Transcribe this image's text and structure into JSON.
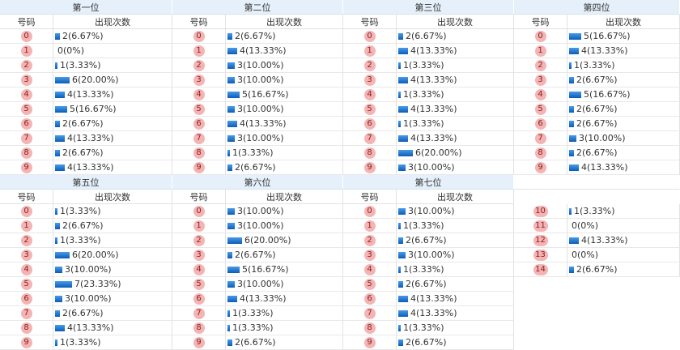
{
  "sections": [
    {
      "title": "第一位",
      "number_header": "号码",
      "count_header": "出现次数",
      "rows": [
        {
          "n": "0",
          "count": 2,
          "label": "2(6.67%)"
        },
        {
          "n": "1",
          "count": 0,
          "label": "0(0%)"
        },
        {
          "n": "2",
          "count": 1,
          "label": "1(3.33%)"
        },
        {
          "n": "3",
          "count": 6,
          "label": "6(20.00%)"
        },
        {
          "n": "4",
          "count": 4,
          "label": "4(13.33%)"
        },
        {
          "n": "5",
          "count": 5,
          "label": "5(16.67%)"
        },
        {
          "n": "6",
          "count": 2,
          "label": "2(6.67%)"
        },
        {
          "n": "7",
          "count": 4,
          "label": "4(13.33%)"
        },
        {
          "n": "8",
          "count": 2,
          "label": "2(6.67%)"
        },
        {
          "n": "9",
          "count": 4,
          "label": "4(13.33%)"
        }
      ]
    },
    {
      "title": "第二位",
      "number_header": "号码",
      "count_header": "出现次数",
      "rows": [
        {
          "n": "0",
          "count": 2,
          "label": "2(6.67%)"
        },
        {
          "n": "1",
          "count": 4,
          "label": "4(13.33%)"
        },
        {
          "n": "2",
          "count": 3,
          "label": "3(10.00%)"
        },
        {
          "n": "3",
          "count": 3,
          "label": "3(10.00%)"
        },
        {
          "n": "4",
          "count": 5,
          "label": "5(16.67%)"
        },
        {
          "n": "5",
          "count": 3,
          "label": "3(10.00%)"
        },
        {
          "n": "6",
          "count": 4,
          "label": "4(13.33%)"
        },
        {
          "n": "7",
          "count": 3,
          "label": "3(10.00%)"
        },
        {
          "n": "8",
          "count": 1,
          "label": "1(3.33%)"
        },
        {
          "n": "9",
          "count": 2,
          "label": "2(6.67%)"
        }
      ]
    },
    {
      "title": "第三位",
      "number_header": "号码",
      "count_header": "出现次数",
      "rows": [
        {
          "n": "0",
          "count": 2,
          "label": "2(6.67%)"
        },
        {
          "n": "1",
          "count": 4,
          "label": "4(13.33%)"
        },
        {
          "n": "2",
          "count": 1,
          "label": "1(3.33%)"
        },
        {
          "n": "3",
          "count": 4,
          "label": "4(13.33%)"
        },
        {
          "n": "4",
          "count": 1,
          "label": "1(3.33%)"
        },
        {
          "n": "5",
          "count": 4,
          "label": "4(13.33%)"
        },
        {
          "n": "6",
          "count": 1,
          "label": "1(3.33%)"
        },
        {
          "n": "7",
          "count": 4,
          "label": "4(13.33%)"
        },
        {
          "n": "8",
          "count": 6,
          "label": "6(20.00%)"
        },
        {
          "n": "9",
          "count": 3,
          "label": "3(10.00%)"
        }
      ]
    },
    {
      "title": "第四位",
      "number_header": "号码",
      "count_header": "出现次数",
      "rows": [
        {
          "n": "0",
          "count": 5,
          "label": "5(16.67%)"
        },
        {
          "n": "1",
          "count": 4,
          "label": "4(13.33%)"
        },
        {
          "n": "2",
          "count": 1,
          "label": "1(3.33%)"
        },
        {
          "n": "3",
          "count": 2,
          "label": "2(6.67%)"
        },
        {
          "n": "4",
          "count": 5,
          "label": "5(16.67%)"
        },
        {
          "n": "5",
          "count": 2,
          "label": "2(6.67%)"
        },
        {
          "n": "6",
          "count": 2,
          "label": "2(6.67%)"
        },
        {
          "n": "7",
          "count": 3,
          "label": "3(10.00%)"
        },
        {
          "n": "8",
          "count": 2,
          "label": "2(6.67%)"
        },
        {
          "n": "9",
          "count": 4,
          "label": "4(13.33%)"
        }
      ]
    },
    {
      "title": "第五位",
      "number_header": "号码",
      "count_header": "出现次数",
      "rows": [
        {
          "n": "0",
          "count": 1,
          "label": "1(3.33%)"
        },
        {
          "n": "1",
          "count": 2,
          "label": "2(6.67%)"
        },
        {
          "n": "2",
          "count": 1,
          "label": "1(3.33%)"
        },
        {
          "n": "3",
          "count": 6,
          "label": "6(20.00%)"
        },
        {
          "n": "4",
          "count": 3,
          "label": "3(10.00%)"
        },
        {
          "n": "5",
          "count": 7,
          "label": "7(23.33%)"
        },
        {
          "n": "6",
          "count": 3,
          "label": "3(10.00%)"
        },
        {
          "n": "7",
          "count": 2,
          "label": "2(6.67%)"
        },
        {
          "n": "8",
          "count": 4,
          "label": "4(13.33%)"
        },
        {
          "n": "9",
          "count": 1,
          "label": "1(3.33%)"
        }
      ]
    },
    {
      "title": "第六位",
      "number_header": "号码",
      "count_header": "出现次数",
      "rows": [
        {
          "n": "0",
          "count": 3,
          "label": "3(10.00%)"
        },
        {
          "n": "1",
          "count": 3,
          "label": "3(10.00%)"
        },
        {
          "n": "2",
          "count": 6,
          "label": "6(20.00%)"
        },
        {
          "n": "3",
          "count": 2,
          "label": "2(6.67%)"
        },
        {
          "n": "4",
          "count": 5,
          "label": "5(16.67%)"
        },
        {
          "n": "5",
          "count": 3,
          "label": "3(10.00%)"
        },
        {
          "n": "6",
          "count": 4,
          "label": "4(13.33%)"
        },
        {
          "n": "7",
          "count": 1,
          "label": "1(3.33%)"
        },
        {
          "n": "8",
          "count": 1,
          "label": "1(3.33%)"
        },
        {
          "n": "9",
          "count": 2,
          "label": "2(6.67%)"
        }
      ]
    },
    {
      "title": "第七位",
      "number_header": "号码",
      "count_header": "出现次数",
      "rows": [
        {
          "n": "0",
          "count": 3,
          "label": "3(10.00%)"
        },
        {
          "n": "1",
          "count": 1,
          "label": "1(3.33%)"
        },
        {
          "n": "2",
          "count": 2,
          "label": "2(6.67%)"
        },
        {
          "n": "3",
          "count": 3,
          "label": "3(10.00%)"
        },
        {
          "n": "4",
          "count": 1,
          "label": "1(3.33%)"
        },
        {
          "n": "5",
          "count": 2,
          "label": "2(6.67%)"
        },
        {
          "n": "6",
          "count": 4,
          "label": "4(13.33%)"
        },
        {
          "n": "7",
          "count": 4,
          "label": "4(13.33%)"
        },
        {
          "n": "8",
          "count": 1,
          "label": "1(3.33%)"
        },
        {
          "n": "9",
          "count": 2,
          "label": "2(6.67%)"
        }
      ]
    }
  ],
  "extra": {
    "rows": [
      {
        "n": "10",
        "count": 1,
        "label": "1(3.33%)"
      },
      {
        "n": "11",
        "count": 0,
        "label": "0(0%)"
      },
      {
        "n": "12",
        "count": 4,
        "label": "4(13.33%)"
      },
      {
        "n": "13",
        "count": 0,
        "label": "0(0%)"
      },
      {
        "n": "14",
        "count": 2,
        "label": "2(6.67%)"
      }
    ]
  }
}
